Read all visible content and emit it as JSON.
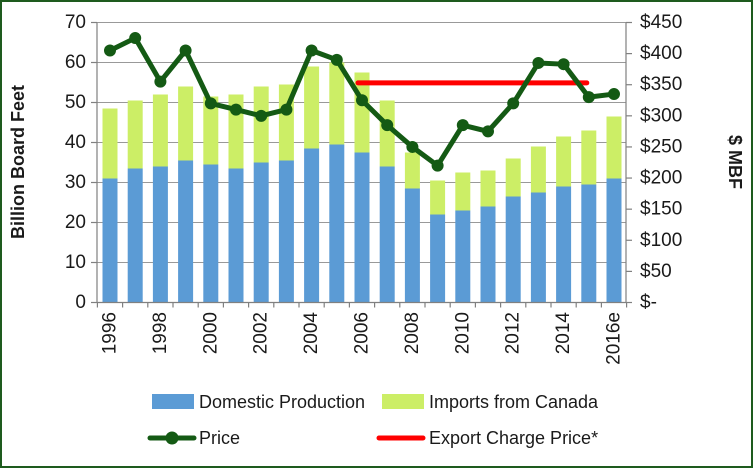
{
  "chart": {
    "colors": {
      "domestic": "#5B9BD5",
      "imports": "#CCEE66",
      "price": "#145A14",
      "export_charge": "#FF0000",
      "grid": "#999999",
      "axis": "#808080",
      "text": "#1A1A1A",
      "border": "#1E5B1E"
    }
  },
  "chart_data": {
    "type": "bar",
    "subtype": "stacked-bars-with-overlay-lines",
    "title": "",
    "categories": [
      "1996",
      "1997",
      "1998",
      "1999",
      "2000",
      "2001",
      "2002",
      "2003",
      "2004",
      "2005",
      "2006",
      "2007",
      "2008",
      "2009",
      "2010",
      "2011",
      "2012",
      "2013",
      "2014",
      "2015",
      "2016e"
    ],
    "xtick_labeled_categories": [
      "1996",
      "1998",
      "2000",
      "2002",
      "2004",
      "2006",
      "2008",
      "2010",
      "2012",
      "2014",
      "2016e"
    ],
    "series": [
      {
        "name": "Domestic Production",
        "type": "bar",
        "stacked": true,
        "axis": "left",
        "color_key": "domestic",
        "values": [
          31,
          33.5,
          34,
          35.5,
          34.5,
          33.5,
          35,
          35.5,
          38.5,
          39.5,
          37.5,
          34,
          28.5,
          22,
          23,
          24,
          26.5,
          27.5,
          29,
          29.5,
          31
        ]
      },
      {
        "name": "Imports from Canada",
        "type": "bar",
        "stacked": true,
        "axis": "left",
        "color_key": "imports",
        "values": [
          17.5,
          17,
          18,
          18.5,
          17,
          18.5,
          19,
          19,
          20.5,
          20.5,
          20,
          16.5,
          9,
          8.5,
          9.5,
          9,
          9.5,
          11.5,
          12.5,
          13.5,
          15.5
        ]
      },
      {
        "name": "Price",
        "type": "line",
        "marker": true,
        "axis": "right",
        "color_key": "price",
        "values": [
          405,
          425,
          355,
          405,
          320,
          310,
          300,
          310,
          405,
          390,
          325,
          285,
          250,
          220,
          285,
          275,
          320,
          385,
          383,
          330,
          335
        ]
      },
      {
        "name": "Export Charge Price*",
        "type": "line",
        "marker": false,
        "axis": "right",
        "color_key": "export_charge",
        "values": [
          null,
          null,
          null,
          null,
          null,
          null,
          null,
          null,
          null,
          null,
          353,
          353,
          353,
          353,
          353,
          353,
          353,
          353,
          353,
          353,
          null
        ]
      }
    ],
    "left_axis": {
      "title": "Billion Board Feet",
      "min": 0,
      "max": 70,
      "tick_step": 10,
      "tick_labels": [
        "0",
        "10",
        "20",
        "30",
        "40",
        "50",
        "60",
        "70"
      ]
    },
    "right_axis": {
      "title": "$ MBF",
      "min": 0,
      "max": 450,
      "tick_step": 50,
      "tick_labels": [
        "$-",
        "$50",
        "$100",
        "$150",
        "$200",
        "$250",
        "$300",
        "$350",
        "$400",
        "$450"
      ]
    },
    "grid": "horizontal",
    "legend_position": "bottom"
  }
}
